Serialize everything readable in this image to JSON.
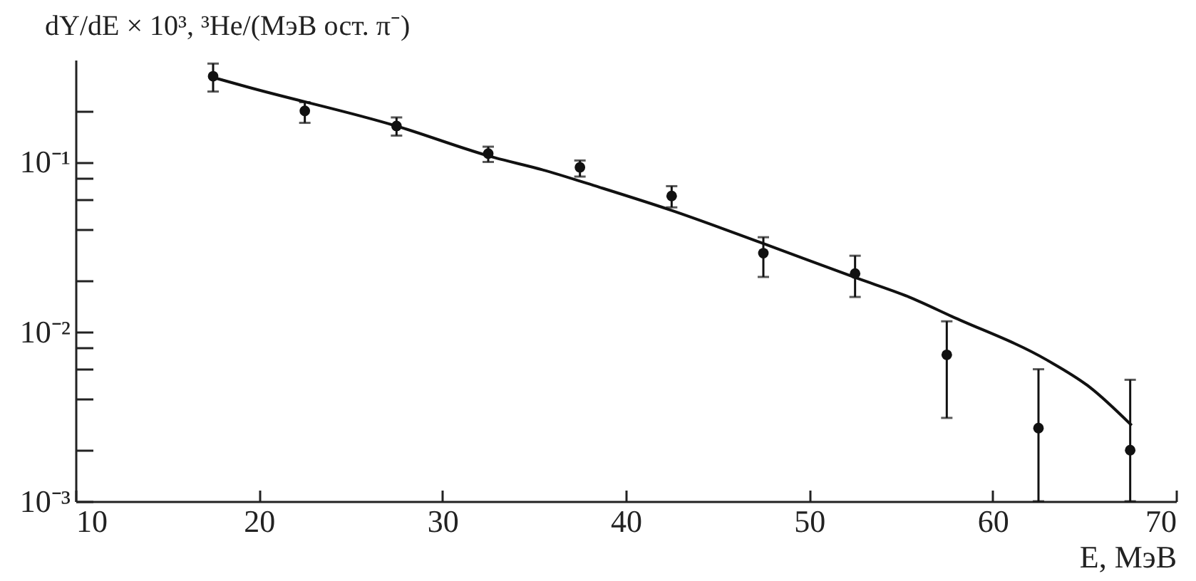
{
  "chart_data": {
    "type": "scatter",
    "xlabel": "E, МэВ",
    "ylabel": "dY/dE × 10³, ³He/(МэВ ост. π⁻)",
    "xlim": [
      10,
      70
    ],
    "xticks": [
      10,
      20,
      30,
      40,
      50,
      60,
      70
    ],
    "ylim": [
      0.001,
      0.4
    ],
    "log": true,
    "yticks": [
      {
        "value": 0.001,
        "label": "10⁻³"
      },
      {
        "value": 0.002,
        "label": null
      },
      {
        "value": 0.004,
        "label": null
      },
      {
        "value": 0.006,
        "label": null
      },
      {
        "value": 0.008,
        "label": null
      },
      {
        "value": 0.01,
        "label": "10⁻²"
      },
      {
        "value": 0.02,
        "label": null
      },
      {
        "value": 0.04,
        "label": null
      },
      {
        "value": 0.06,
        "label": null
      },
      {
        "value": 0.08,
        "label": null
      },
      {
        "value": 0.1,
        "label": "10⁻¹"
      },
      {
        "value": 0.2,
        "label": null
      }
    ],
    "line_style": "solid",
    "series": [
      {
        "type": "line",
        "color": "#111111",
        "x": [
          17.5,
          19.35,
          27.4,
          32.85,
          35.44,
          38.55,
          42.45,
          47.38,
          52.58,
          55.44,
          57.77,
          62.96,
          65.3,
          67.58
        ],
        "values": [
          0.315,
          0.277,
          0.164,
          0.106,
          0.09,
          0.071,
          0.052,
          0.0334,
          0.0207,
          0.016,
          0.0123,
          0.0068,
          0.0047,
          0.0028
        ]
      },
      {
        "marker": "circle",
        "color": "#111111",
        "x": [
          17.5,
          22.5,
          27.5,
          32.5,
          37.5,
          42.5,
          47.5,
          52.5,
          57.5,
          62.5,
          67.5
        ],
        "values": [
          0.32,
          0.2,
          0.163,
          0.112,
          0.093,
          0.063,
          0.029,
          0.022,
          0.0073,
          0.0027,
          0.002
        ],
        "errors": [
          [
            0.26,
            0.38
          ],
          [
            0.17,
            0.225
          ],
          [
            0.143,
            0.183
          ],
          [
            0.1,
            0.123
          ],
          [
            0.082,
            0.102
          ],
          [
            0.054,
            0.072
          ],
          [
            0.021,
            0.036
          ],
          [
            0.016,
            0.028
          ],
          [
            0.0031,
            0.0115
          ],
          [
            0.001,
            0.006
          ],
          [
            0.001,
            0.0052
          ]
        ]
      }
    ]
  }
}
